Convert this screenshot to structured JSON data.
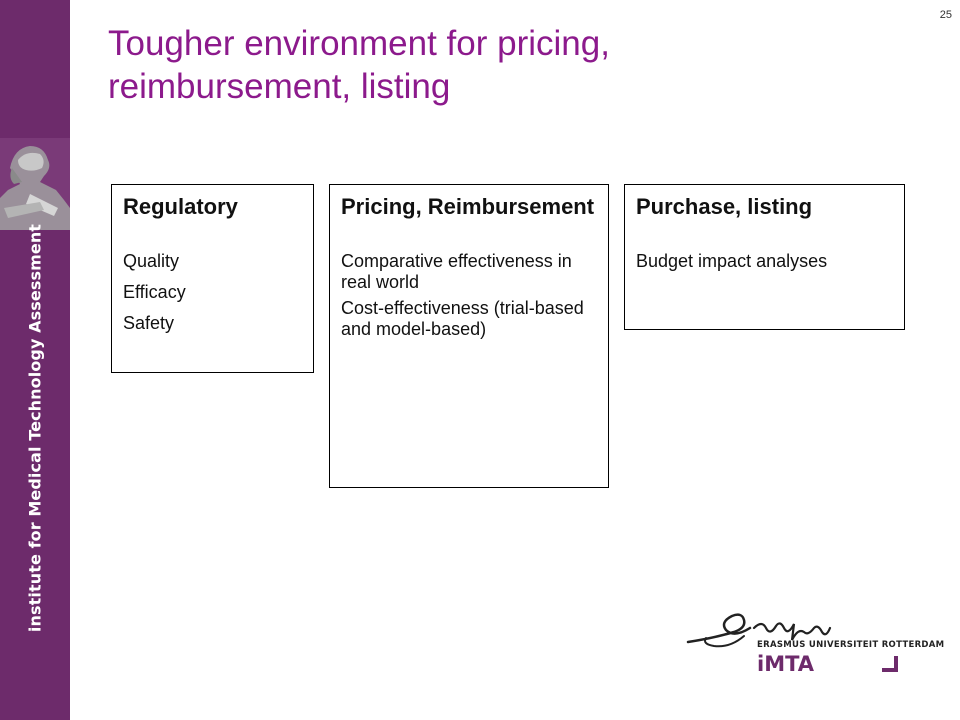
{
  "sidebar": {
    "text": "institute for Medical Technology Assessment",
    "bg_color": "#6d2b6b"
  },
  "slide_number": "25",
  "title": {
    "line1": "Tougher environment for pricing,",
    "line2": "reimbursement, listing",
    "color": "#8c1a8c"
  },
  "boxes": [
    {
      "heading": "Regulatory",
      "items": [
        "Quality",
        "Efficacy",
        "Safety"
      ]
    },
    {
      "heading": "Pricing, Reimbursement",
      "items": [
        "Comparative effectiveness in real world",
        "Cost-effectiveness (trial-based and model-based)"
      ]
    },
    {
      "heading": "Purchase, listing",
      "items": [
        "Budget impact analyses"
      ]
    }
  ],
  "logo": {
    "signature": "Erafmus",
    "university": "ERASMUS UNIVERSITEIT ROTTERDAM",
    "institute": "iMTA"
  }
}
